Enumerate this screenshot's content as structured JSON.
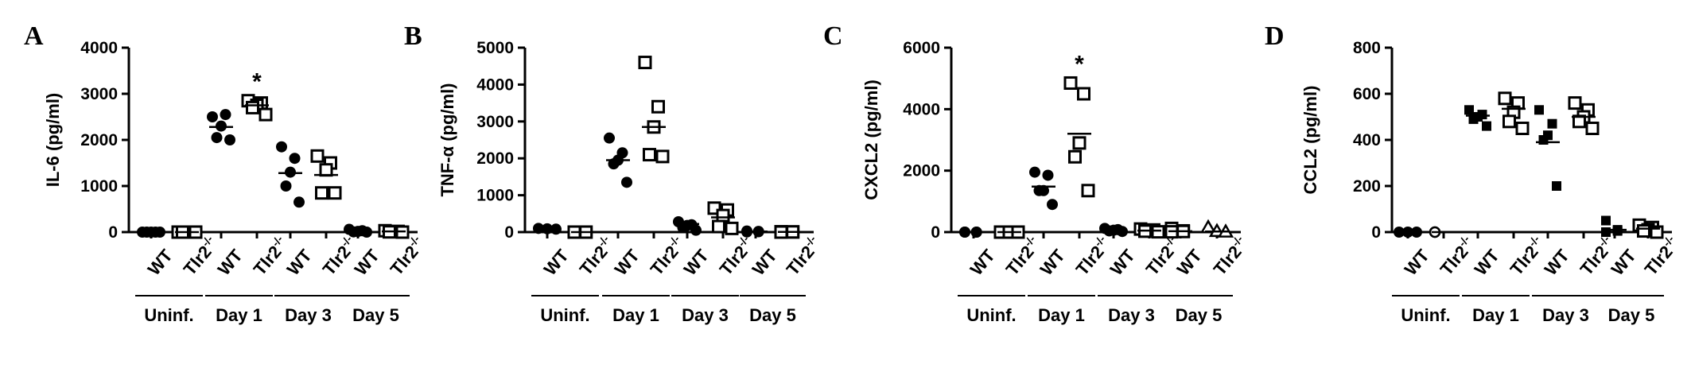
{
  "chart_data": [
    {
      "type": "scatter",
      "panel": "A",
      "ylabel": "IL-6 (pg/ml)",
      "ylim": [
        0,
        4000
      ],
      "yticks": [
        "0",
        "1000",
        "2000",
        "3000",
        "4000"
      ],
      "categories": [
        {
          "label": "WT",
          "group": "Uninf.",
          "marker": "circle",
          "values": [
            0,
            0,
            0,
            0,
            0
          ],
          "mean": 0
        },
        {
          "label": "Tlr2",
          "sup": "-/-",
          "group": "Uninf.",
          "marker": "square",
          "values": [
            0,
            0,
            0,
            0,
            0
          ],
          "mean": 0
        },
        {
          "label": "WT",
          "group": "Day 1",
          "marker": "circle",
          "values": [
            2500,
            2550,
            2300,
            2050,
            2000
          ],
          "mean": 2280
        },
        {
          "label": "Tlr2",
          "sup": "-/-",
          "group": "Day 1",
          "marker": "square",
          "values": [
            2850,
            2800,
            2750,
            2700,
            2550
          ],
          "mean": 2750,
          "annotation": "*"
        },
        {
          "label": "WT",
          "group": "Day 3",
          "marker": "circle",
          "values": [
            1850,
            1600,
            1300,
            1000,
            650
          ],
          "mean": 1280
        },
        {
          "label": "Tlr2",
          "sup": "-/-",
          "group": "Day 3",
          "marker": "square",
          "values": [
            1650,
            1500,
            1350,
            850,
            850
          ],
          "mean": 1240
        },
        {
          "label": "WT",
          "group": "Day 5",
          "marker": "circle",
          "values": [
            60,
            30,
            15,
            5,
            0
          ],
          "mean": 20
        },
        {
          "label": "Tlr2",
          "sup": "-/-",
          "group": "Day 5",
          "marker": "square",
          "values": [
            30,
            15,
            10,
            5,
            0
          ],
          "mean": 15
        }
      ],
      "groups": [
        "Uninf.",
        "Day 1",
        "Day 3",
        "Day 5"
      ]
    },
    {
      "type": "scatter",
      "panel": "B",
      "ylabel": "TNF-α (pg/ml)",
      "ylim": [
        0,
        5000
      ],
      "yticks": [
        "0",
        "1000",
        "2000",
        "3000",
        "4000",
        "5000"
      ],
      "categories": [
        {
          "label": "WT",
          "group": "Uninf.",
          "marker": "circle",
          "values": [
            100,
            90,
            80
          ],
          "mean": 90
        },
        {
          "label": "Tlr2",
          "sup": "-/-",
          "group": "Uninf.",
          "marker": "square",
          "values": [
            0,
            0,
            0,
            0
          ],
          "mean": 0
        },
        {
          "label": "WT",
          "group": "Day 1",
          "marker": "circle",
          "values": [
            2550,
            2150,
            1950,
            1850,
            1350
          ],
          "mean": 1950
        },
        {
          "label": "Tlr2",
          "sup": "-/-",
          "group": "Day 1",
          "marker": "square",
          "values": [
            4600,
            3400,
            2850,
            2100,
            2050
          ],
          "mean": 2850
        },
        {
          "label": "WT",
          "group": "Day 3",
          "marker": "circle",
          "values": [
            280,
            200,
            180,
            120,
            50
          ],
          "mean": 220
        },
        {
          "label": "Tlr2",
          "sup": "-/-",
          "group": "Day 3",
          "marker": "square",
          "values": [
            650,
            600,
            450,
            150,
            100
          ],
          "mean": 400
        },
        {
          "label": "WT",
          "group": "Day 5",
          "marker": "circle",
          "values": [
            30,
            20,
            10,
            5
          ],
          "mean": 15
        },
        {
          "label": "Tlr2",
          "sup": "-/-",
          "group": "Day 5",
          "marker": "square",
          "values": [
            10,
            5,
            5,
            0
          ],
          "mean": 5
        }
      ],
      "groups": [
        "Uninf.",
        "Day 1",
        "Day 3",
        "Day 5"
      ]
    },
    {
      "type": "scatter",
      "panel": "C",
      "ylabel": "CXCL2 (pg/ml)",
      "ylim": [
        0,
        6000
      ],
      "yticks": [
        "0",
        "2000",
        "4000",
        "6000"
      ],
      "categories": [
        {
          "label": "WT",
          "group": "Uninf.",
          "marker": "circle",
          "values": [
            0,
            0,
            0,
            0
          ],
          "mean": 0
        },
        {
          "label": "Tlr2",
          "sup": "-/-",
          "group": "Uninf.",
          "marker": "square",
          "values": [
            0,
            0,
            0
          ],
          "mean": 0
        },
        {
          "label": "WT",
          "group": "Day 1",
          "marker": "circle",
          "values": [
            1950,
            1850,
            1350,
            1350,
            900
          ],
          "mean": 1480
        },
        {
          "label": "Tlr2",
          "sup": "-/-",
          "group": "Day 1",
          "marker": "square",
          "values": [
            4850,
            4500,
            2900,
            2450,
            1350
          ],
          "mean": 3200,
          "annotation": "*"
        },
        {
          "label": "WT",
          "group": "Day 3",
          "marker": "circle",
          "values": [
            120,
            80,
            60,
            40,
            20
          ],
          "mean": 60
        },
        {
          "label": "Tlr2",
          "sup": "-/-",
          "group": "Day 3",
          "marker": "square",
          "values": [
            100,
            70,
            50,
            30,
            10
          ],
          "mean": 50
        },
        {
          "label": "WT",
          "group": "Day 5",
          "marker": "square",
          "values": [
            120,
            40,
            20,
            10
          ],
          "mean": 30
        },
        {
          "label": "Tlr2",
          "sup": "-/-",
          "group": "Day 5",
          "marker": "triangle",
          "values": [
            150,
            30,
            10
          ],
          "mean": 20
        }
      ],
      "groups": [
        "Uninf.",
        "Day 1",
        "Day 3",
        "Day 5"
      ]
    },
    {
      "type": "scatter",
      "panel": "D",
      "ylabel": "CCL2 (pg/ml)",
      "ylim": [
        0,
        800
      ],
      "yticks": [
        "0",
        "200",
        "400",
        "600",
        "800"
      ],
      "categories": [
        {
          "label": "WT",
          "group": "Uninf.",
          "marker": "circle",
          "values": [
            0,
            0,
            0
          ],
          "mean": 0
        },
        {
          "label": "Tlr2",
          "sup": "-/-",
          "group": "Uninf.",
          "marker": "circle-open",
          "values": [
            0,
            0
          ],
          "mean": 0
        },
        {
          "label": "WT",
          "group": "Day 1",
          "marker": "square-filled",
          "values": [
            530,
            510,
            500,
            490,
            460
          ],
          "mean": 505
        },
        {
          "label": "Tlr2",
          "sup": "-/-",
          "group": "Day 1",
          "marker": "square",
          "values": [
            580,
            560,
            520,
            480,
            450
          ],
          "mean": 535
        },
        {
          "label": "WT",
          "group": "Day 3",
          "marker": "square-filled",
          "values": [
            530,
            470,
            420,
            400,
            200
          ],
          "mean": 390
        },
        {
          "label": "Tlr2",
          "sup": "-/-",
          "group": "Day 3",
          "marker": "square",
          "values": [
            560,
            530,
            500,
            480,
            450
          ],
          "mean": 500
        },
        {
          "label": "WT",
          "group": "Day 5",
          "marker": "square-filled",
          "values": [
            50,
            10,
            5,
            0
          ],
          "mean": 10
        },
        {
          "label": "Tlr2",
          "sup": "-/-",
          "group": "Day 5",
          "marker": "square",
          "values": [
            30,
            20,
            10,
            5,
            0
          ],
          "mean": 15
        }
      ],
      "groups": [
        "Uninf.",
        "Day 1",
        "Day 3",
        "Day 5"
      ]
    }
  ]
}
